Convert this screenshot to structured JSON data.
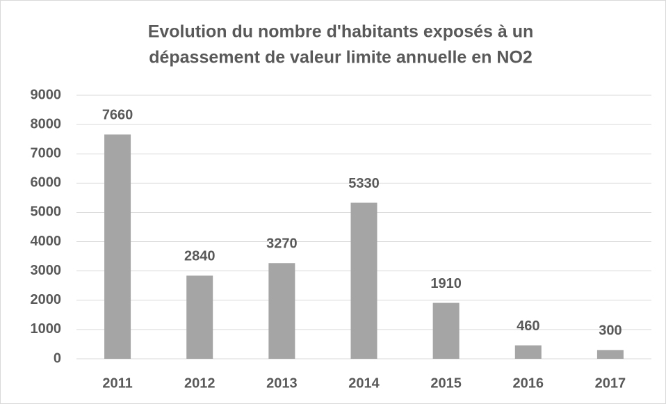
{
  "chart_data": {
    "type": "bar",
    "title": [
      "Evolution du nombre d'habitants exposés à un",
      "dépassement de valeur limite annuelle en NO2"
    ],
    "categories": [
      "2011",
      "2012",
      "2013",
      "2014",
      "2015",
      "2016",
      "2017"
    ],
    "values": [
      7660,
      2840,
      3270,
      5330,
      1910,
      460,
      300
    ],
    "color": "#a5a5a5",
    "ylim": [
      0,
      9000
    ],
    "yticks": [
      0,
      1000,
      2000,
      3000,
      4000,
      5000,
      6000,
      7000,
      8000,
      9000
    ],
    "grid": true,
    "data_labels": true
  }
}
